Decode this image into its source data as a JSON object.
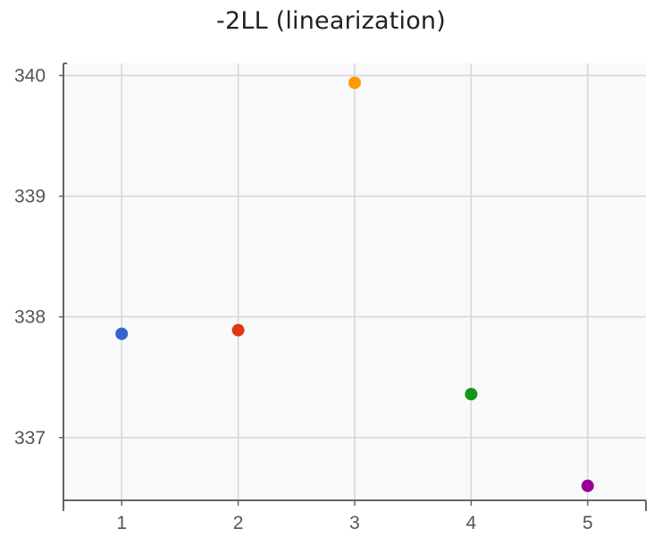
{
  "chart_data": {
    "type": "scatter",
    "title": "-2LL (linearization)",
    "xlabel": "",
    "ylabel": "",
    "x": [
      1,
      2,
      3,
      4,
      5
    ],
    "values": [
      337.86,
      337.89,
      339.94,
      337.36,
      336.6
    ],
    "point_colors": [
      "#3366cc",
      "#dc3912",
      "#ff9900",
      "#109618",
      "#990099"
    ],
    "xlim": [
      0.5,
      5.5
    ],
    "ylim": [
      336.48,
      340.1
    ],
    "x_ticks": [
      1,
      2,
      3,
      4,
      5
    ],
    "y_ticks": [
      337,
      338,
      339,
      340
    ],
    "grid": true,
    "legend": "none"
  },
  "colors": {
    "plot_background": "#f9f9fc",
    "grid": "#d6d6d6",
    "axis": "#666666"
  }
}
